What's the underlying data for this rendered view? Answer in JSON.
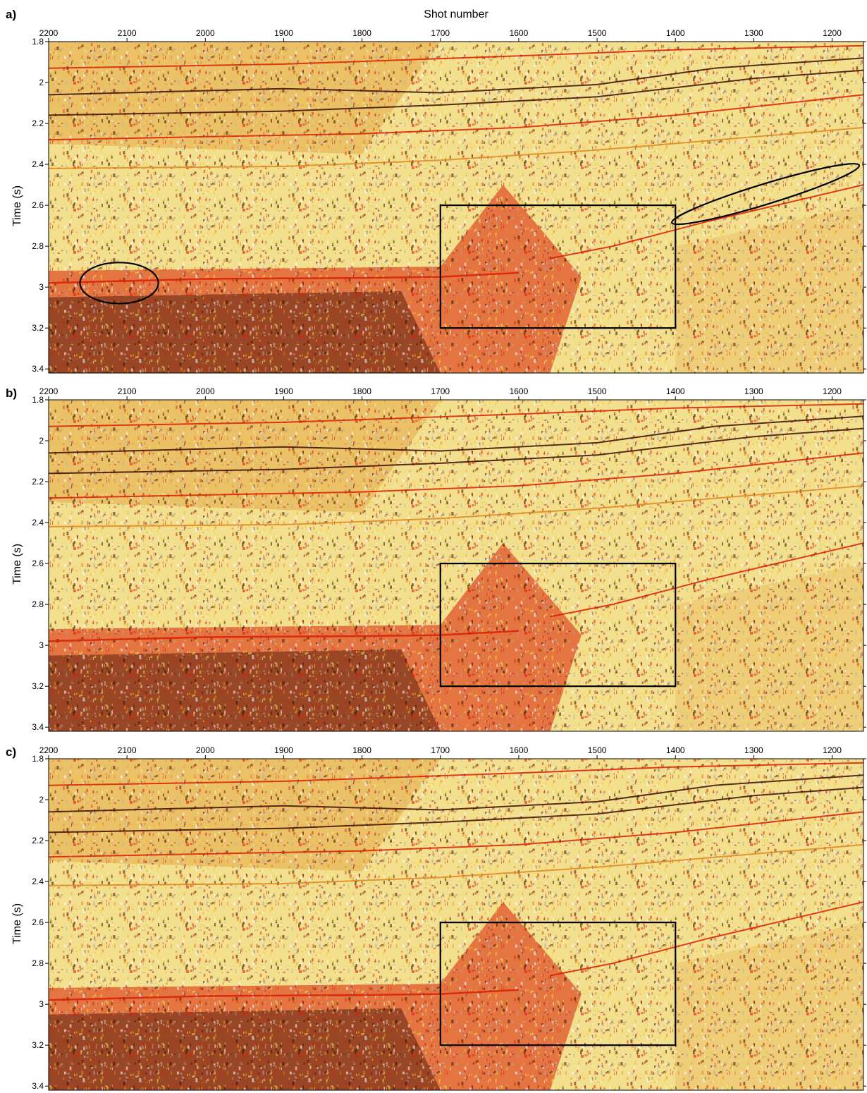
{
  "figure": {
    "x_axis_title": "Shot number",
    "y_axis_title": "Time (s)",
    "background_colors": {
      "light": "#f3efd3",
      "yellow": "#f2cf3c",
      "orange": "#e0861f",
      "red": "#d81e05",
      "dark": "#3c0d02",
      "gray": "#a9a9a9"
    }
  },
  "chart_data": [
    {
      "type": "heatmap",
      "panel_label": "a)",
      "xlabel": "Shot number",
      "ylabel": "Time (s)",
      "xlim": [
        2200,
        1160
      ],
      "ylim": [
        1.8,
        3.42
      ],
      "x_ticks": [
        2200,
        2100,
        2000,
        1900,
        1800,
        1700,
        1600,
        1500,
        1400,
        1300,
        1200
      ],
      "y_ticks": [
        1.8,
        2,
        2.2,
        2.4,
        2.6,
        2.8,
        3,
        3.2,
        3.4
      ],
      "show_x_title": true,
      "annotations": [
        {
          "kind": "rectangle",
          "x": [
            1700,
            1400
          ],
          "y": [
            2.6,
            3.2
          ]
        },
        {
          "kind": "ellipse",
          "center": [
            2110,
            2.98
          ],
          "radius_x": 50,
          "radius_y": 0.1,
          "rotation_deg": 0
        },
        {
          "kind": "ellipse",
          "center": [
            1285,
            2.545
          ],
          "radius_x": 125,
          "radius_y": 0.05,
          "rotation_deg": -17
        }
      ]
    },
    {
      "type": "heatmap",
      "panel_label": "b)",
      "xlabel": "",
      "ylabel": "Time (s)",
      "xlim": [
        2200,
        1160
      ],
      "ylim": [
        1.8,
        3.42
      ],
      "x_ticks": [
        2200,
        2100,
        2000,
        1900,
        1800,
        1700,
        1600,
        1500,
        1400,
        1300,
        1200
      ],
      "y_ticks": [
        1.8,
        2,
        2.2,
        2.4,
        2.6,
        2.8,
        3,
        3.2,
        3.4
      ],
      "show_x_title": false,
      "annotations": [
        {
          "kind": "rectangle",
          "x": [
            1700,
            1400
          ],
          "y": [
            2.6,
            3.2
          ]
        }
      ]
    },
    {
      "type": "heatmap",
      "panel_label": "c)",
      "xlabel": "",
      "ylabel": "Time (s)",
      "xlim": [
        2200,
        1160
      ],
      "ylim": [
        1.8,
        3.42
      ],
      "x_ticks": [
        2200,
        2100,
        2000,
        1900,
        1800,
        1700,
        1600,
        1500,
        1400,
        1300,
        1200
      ],
      "y_ticks": [
        1.8,
        2,
        2.2,
        2.4,
        2.6,
        2.8,
        3,
        3.2,
        3.4
      ],
      "show_x_title": false,
      "annotations": [
        {
          "kind": "rectangle",
          "x": [
            1700,
            1400
          ],
          "y": [
            2.6,
            3.2
          ]
        }
      ]
    }
  ]
}
